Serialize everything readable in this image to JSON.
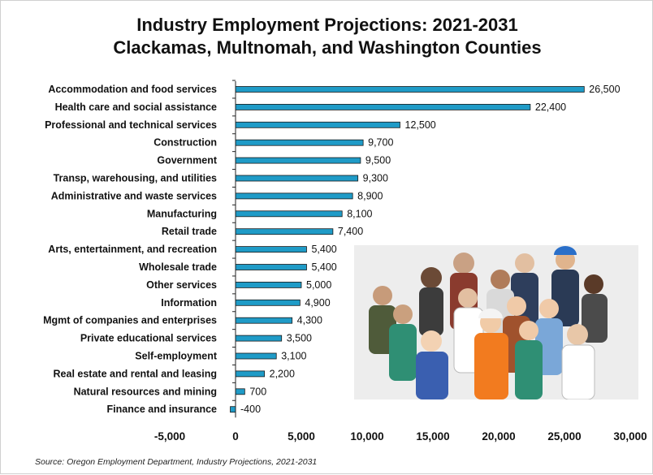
{
  "chart_data": {
    "type": "bar",
    "orientation": "horizontal",
    "title": "Industry Employment Projections: 2021-2031",
    "subtitle": "Clackamas, Multnomah, and Washington Counties",
    "categories": [
      "Accommodation and food services",
      "Health care and social assistance",
      "Professional and technical services",
      "Construction",
      "Government",
      "Transp, warehousing, and utilities",
      "Administrative and waste services",
      "Manufacturing",
      "Retail trade",
      "Arts, entertainment, and recreation",
      "Wholesale trade",
      "Other services",
      "Information",
      "Mgmt of companies and enterprises",
      "Private educational services",
      "Self-employment",
      "Real estate and rental and leasing",
      "Natural resources and mining",
      "Finance and insurance"
    ],
    "values": [
      26500,
      22400,
      12500,
      9700,
      9500,
      9300,
      8900,
      8100,
      7400,
      5400,
      5400,
      5000,
      4900,
      4300,
      3500,
      3100,
      2200,
      700,
      -400
    ],
    "value_labels": [
      "26,500",
      "22,400",
      "12,500",
      "9,700",
      "9,500",
      "9,300",
      "8,900",
      "8,100",
      "7,400",
      "5,400",
      "5,400",
      "5,000",
      "4,900",
      "4,300",
      "3,500",
      "3,100",
      "2,200",
      "700",
      "-400"
    ],
    "xlim": [
      -5000,
      30000
    ],
    "xticks": [
      -5000,
      0,
      5000,
      10000,
      15000,
      20000,
      25000,
      30000
    ],
    "xtick_labels": [
      "-5,000",
      "0",
      "5,000",
      "10,000",
      "15,000",
      "20,000",
      "25,000",
      "30,000"
    ],
    "bar_color": "#1f9bc7",
    "grid": false,
    "source": "Source: Oregon Employment Department, Industry Projections, 2021-2031"
  },
  "image_alt_icon": "people-of-many-occupations-photo"
}
